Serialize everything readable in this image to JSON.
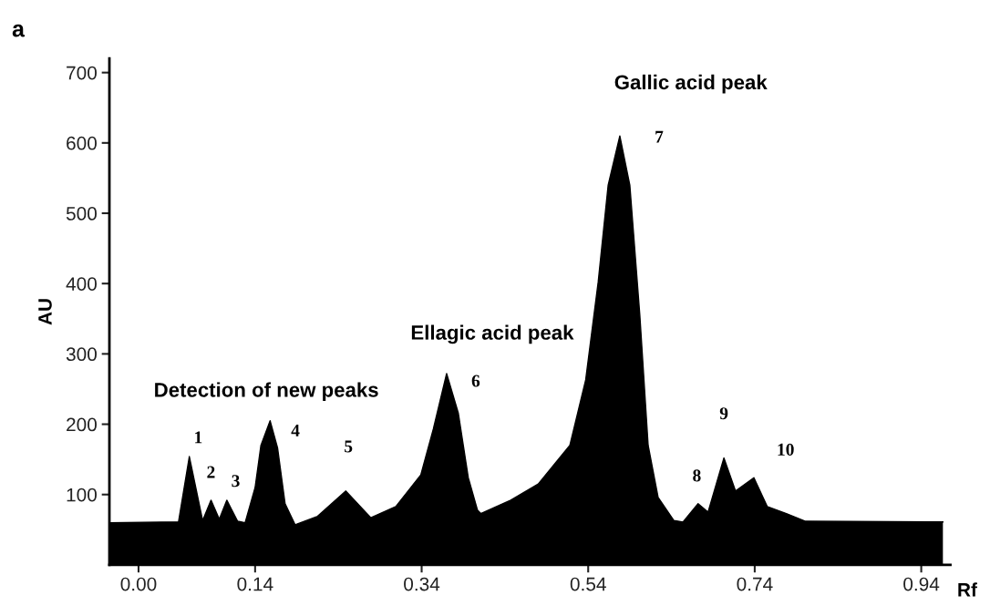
{
  "chart_data": {
    "type": "area",
    "xlabel": "Rf",
    "ylabel": "AU",
    "x": [
      -0.035,
      0.048,
      0.061,
      0.077,
      0.087,
      0.097,
      0.106,
      0.119,
      0.128,
      0.14,
      0.147,
      0.158,
      0.167,
      0.176,
      0.188,
      0.215,
      0.249,
      0.279,
      0.309,
      0.339,
      0.354,
      0.37,
      0.384,
      0.396,
      0.407,
      0.411,
      0.447,
      0.48,
      0.518,
      0.537,
      0.552,
      0.564,
      0.578,
      0.59,
      0.602,
      0.612,
      0.624,
      0.643,
      0.654,
      0.672,
      0.684,
      0.703,
      0.717,
      0.739,
      0.755,
      0.778,
      0.801,
      0.966
    ],
    "series": [
      {
        "color": "#000000",
        "values": [
          60,
          61,
          154,
          63,
          92,
          65,
          92,
          62,
          60,
          110,
          170,
          205,
          166,
          87,
          57,
          69,
          105,
          67,
          83,
          128,
          193,
          272,
          216,
          124,
          78,
          73,
          92,
          115,
          170,
          263,
          402,
          540,
          610,
          540,
          355,
          170,
          96,
          63,
          61,
          87,
          75,
          152,
          105,
          124,
          83,
          73,
          62,
          61
        ]
      }
    ],
    "xlim": [
      -0.035,
      0.975
    ],
    "ylim": [
      0,
      720
    ],
    "xticks": [
      {
        "value": 0,
        "label": "0.00"
      },
      0.14,
      0.34,
      0.54,
      0.74,
      0.94
    ],
    "yticks": [
      100,
      200,
      300,
      400,
      500,
      600,
      700
    ],
    "grid": false,
    "legend": false,
    "annotations": [
      "a",
      {
        "text": "1",
        "x": 0.061,
        "y": 154
      },
      {
        "text": "2",
        "x": 0.087,
        "y": 92
      },
      {
        "text": "3",
        "x": 0.106,
        "y": 92
      },
      {
        "text": "4",
        "x": 0.158,
        "y": 205
      },
      {
        "text": "5",
        "x": 0.249,
        "y": 105
      },
      {
        "text": "6",
        "x": 0.37,
        "y": 272
      },
      {
        "text": "7",
        "x": 0.578,
        "y": 610
      },
      {
        "text": "8",
        "x": 0.672,
        "y": 87
      },
      {
        "text": "9",
        "x": 0.703,
        "y": 152
      },
      {
        "text": "10",
        "x": 0.739,
        "y": 124
      },
      {
        "text": "Detection of new peaks",
        "x": 0.158,
        "y": 205
      },
      {
        "text": "Ellagic acid peak",
        "x": 0.37,
        "y": 272
      },
      {
        "text": "Gallic acid peak",
        "x": 0.578,
        "y": 610
      }
    ]
  }
}
